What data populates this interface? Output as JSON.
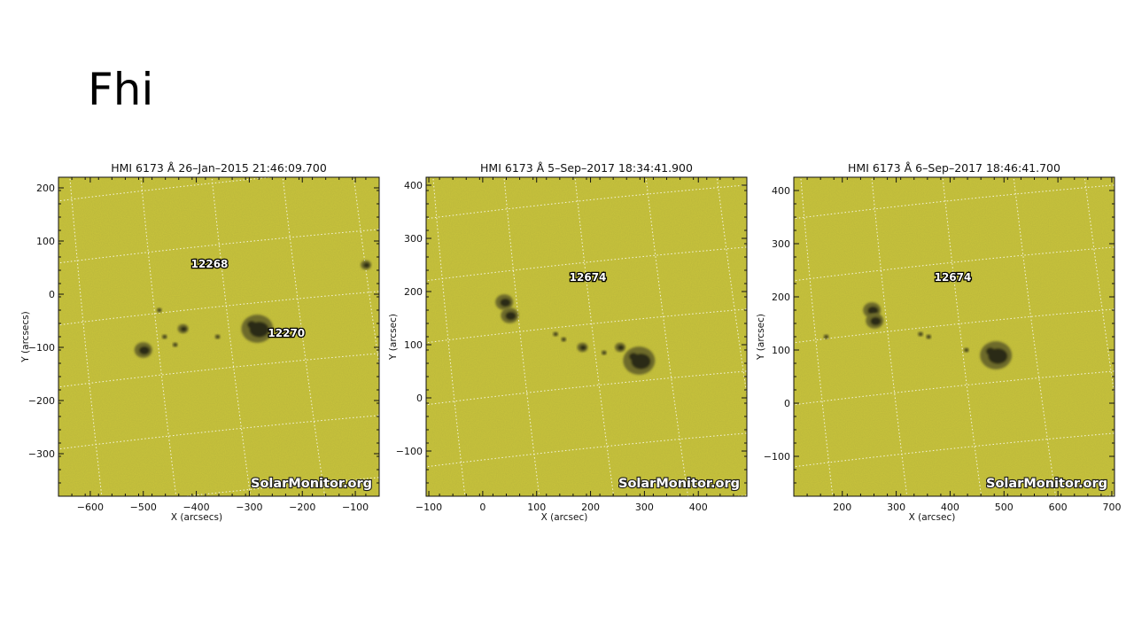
{
  "slide": {
    "title": "Fhi"
  },
  "panels": [
    {
      "title": "HMI 6173 Å 26–Jan–2015 21:46:09.700",
      "xlabel": "X (arcsecs)",
      "ylabel": "Y (arcsecs)",
      "xlim": [
        -660,
        -55
      ],
      "ylim": [
        -380,
        220
      ],
      "xticks": [
        -600,
        -500,
        -400,
        -300,
        -200,
        -100
      ],
      "yticks": [
        200,
        100,
        0,
        -100,
        -200,
        -300
      ],
      "x_tick_labels": [
        "−600",
        "−500",
        "−400",
        "−300",
        "−200",
        "−100"
      ],
      "y_tick_labels": [
        "200",
        "100",
        "0",
        "−100",
        "−200",
        "−300"
      ],
      "regions": [
        {
          "label": "12268",
          "x": -375,
          "y": 50
        },
        {
          "label": "12270",
          "x": -230,
          "y": -80
        }
      ],
      "spots": [
        {
          "x": -285,
          "y": -65,
          "size": "large"
        },
        {
          "x": -500,
          "y": -105,
          "size": "medium"
        },
        {
          "x": -425,
          "y": -65,
          "size": "small"
        },
        {
          "x": -80,
          "y": 55,
          "size": "small"
        },
        {
          "x": -470,
          "y": -30,
          "size": "tiny"
        },
        {
          "x": -460,
          "y": -80,
          "size": "tiny"
        },
        {
          "x": -440,
          "y": -95,
          "size": "tiny"
        },
        {
          "x": -360,
          "y": -80,
          "size": "tiny"
        }
      ],
      "watermark": "SolarMonitor.org"
    },
    {
      "title": "HMI 6173 Å 5–Sep–2017 18:34:41.900",
      "xlabel": "X (arcsec)",
      "ylabel": "Y (arcsec)",
      "xlim": [
        -105,
        490
      ],
      "ylim": [
        -185,
        415
      ],
      "xticks": [
        -100,
        0,
        100,
        200,
        300,
        400
      ],
      "yticks": [
        400,
        300,
        200,
        100,
        0,
        -100
      ],
      "x_tick_labels": [
        "−100",
        "0",
        "100",
        "200",
        "300",
        "400"
      ],
      "y_tick_labels": [
        "400",
        "300",
        "200",
        "100",
        "0",
        "−100"
      ],
      "regions": [
        {
          "label": "12674",
          "x": 195,
          "y": 220
        }
      ],
      "spots": [
        {
          "x": 290,
          "y": 70,
          "size": "large"
        },
        {
          "x": 255,
          "y": 95,
          "size": "small"
        },
        {
          "x": 40,
          "y": 180,
          "size": "medium"
        },
        {
          "x": 50,
          "y": 155,
          "size": "medium"
        },
        {
          "x": 185,
          "y": 95,
          "size": "small"
        },
        {
          "x": 135,
          "y": 120,
          "size": "tiny"
        },
        {
          "x": 150,
          "y": 110,
          "size": "tiny"
        },
        {
          "x": 225,
          "y": 85,
          "size": "tiny"
        }
      ],
      "watermark": "SolarMonitor.org"
    },
    {
      "title": "HMI 6173 Å 6–Sep–2017 18:46:41.700",
      "xlabel": "X (arcsec)",
      "ylabel": "Y (arcsec)",
      "xlim": [
        110,
        705
      ],
      "ylim": [
        -175,
        425
      ],
      "xticks": [
        200,
        300,
        400,
        500,
        600,
        700
      ],
      "yticks": [
        400,
        300,
        200,
        100,
        0,
        -100
      ],
      "x_tick_labels": [
        "200",
        "300",
        "400",
        "500",
        "600",
        "700"
      ],
      "y_tick_labels": [
        "400",
        "300",
        "200",
        "100",
        "0",
        "−100"
      ],
      "regions": [
        {
          "label": "12674",
          "x": 405,
          "y": 230
        }
      ],
      "spots": [
        {
          "x": 485,
          "y": 90,
          "size": "large"
        },
        {
          "x": 255,
          "y": 175,
          "size": "medium"
        },
        {
          "x": 260,
          "y": 155,
          "size": "medium"
        },
        {
          "x": 345,
          "y": 130,
          "size": "tiny"
        },
        {
          "x": 360,
          "y": 125,
          "size": "tiny"
        },
        {
          "x": 430,
          "y": 100,
          "size": "tiny"
        },
        {
          "x": 170,
          "y": 125,
          "size": "tiny"
        }
      ],
      "watermark": "SolarMonitor.org"
    }
  ],
  "colors": {
    "disk": "#c9c43a",
    "disk_dark": "#b7b22c",
    "spot_umbra": "#2a2a14",
    "spot_penumbra": "#6d6a2a",
    "grid": "#ffffff"
  }
}
